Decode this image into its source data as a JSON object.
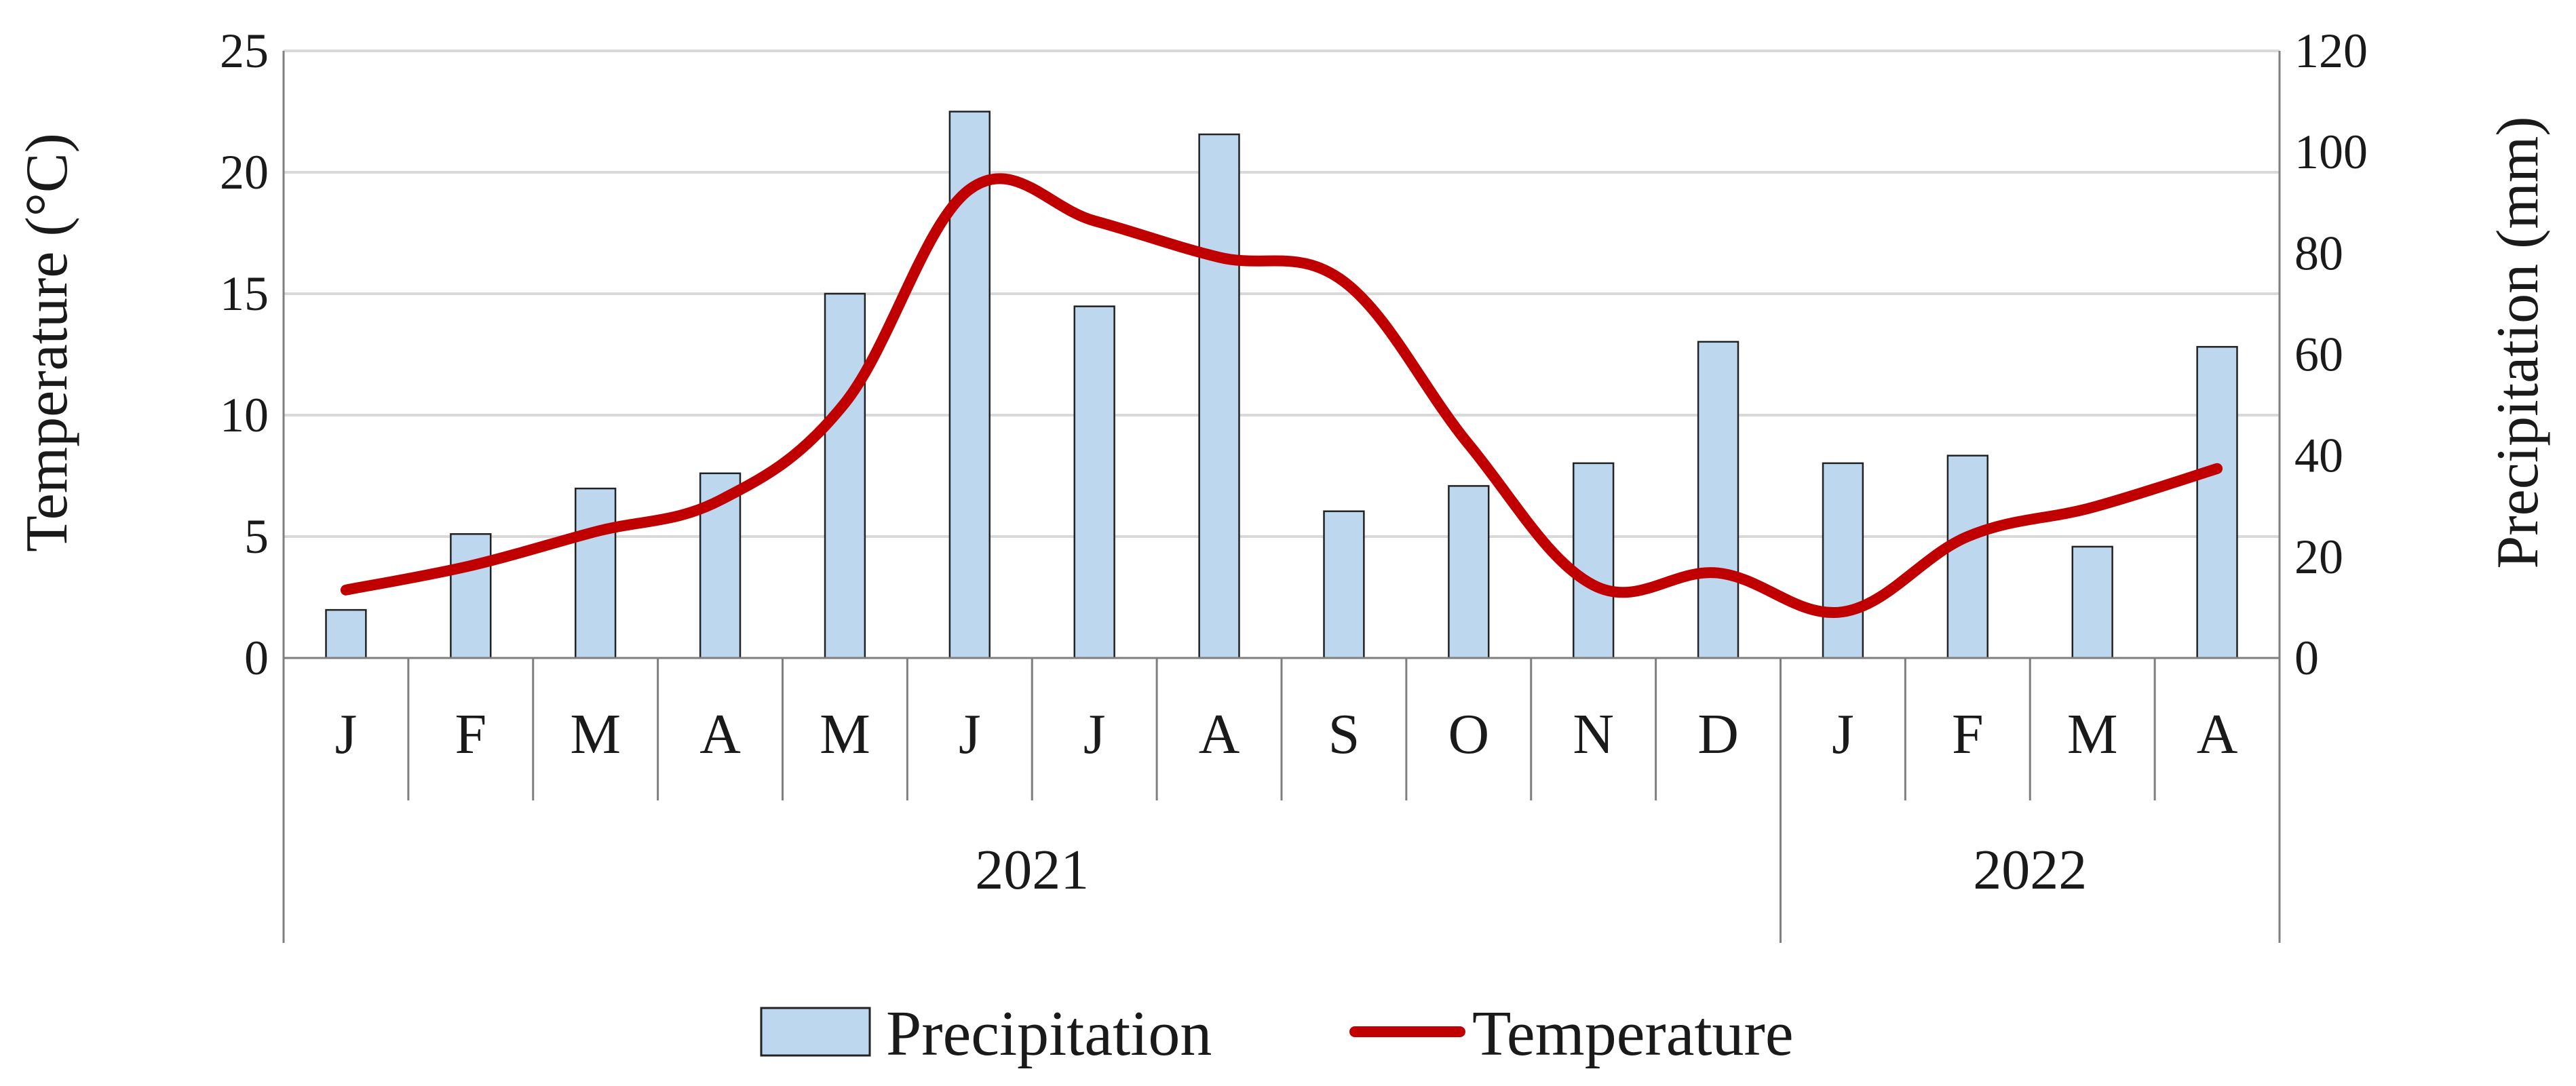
{
  "chart_data": {
    "type": "bar",
    "title": "",
    "categories": [
      "J",
      "F",
      "M",
      "A",
      "M",
      "J",
      "J",
      "A",
      "S",
      "O",
      "N",
      "D",
      "J",
      "F",
      "M",
      "A"
    ],
    "groups": [
      {
        "label": "2021",
        "count": 12
      },
      {
        "label": "2022",
        "count": 4
      }
    ],
    "series": [
      {
        "name": "Precipitation",
        "kind": "bar",
        "axis": "right",
        "color": "#bdd7ee",
        "values": [
          9.5,
          24.5,
          33.5,
          36.5,
          72,
          108,
          69.5,
          103.5,
          29,
          34,
          38.5,
          62.5,
          38.5,
          40,
          22,
          61.5
        ]
      },
      {
        "name": "Temperature",
        "kind": "line",
        "axis": "left",
        "color": "#c00000",
        "values": [
          2.8,
          3.8,
          5.2,
          6.5,
          10.5,
          19.3,
          18.0,
          16.5,
          15.5,
          8.8,
          3.0,
          3.5,
          1.9,
          5.0,
          6.2,
          7.8
        ]
      }
    ],
    "y_left": {
      "label": "Temperature (°C)",
      "ticks": [
        0,
        5,
        10,
        15,
        20,
        25
      ],
      "ylim": [
        0,
        25
      ]
    },
    "y_right": {
      "label": "Precipitation (mm)",
      "ticks": [
        0,
        20,
        40,
        60,
        80,
        100,
        120
      ],
      "ylim": [
        0,
        120
      ]
    },
    "xlabel": "",
    "grid": true,
    "legend": {
      "position": "bottom",
      "entries": [
        "Precipitation",
        "Temperature"
      ]
    }
  }
}
